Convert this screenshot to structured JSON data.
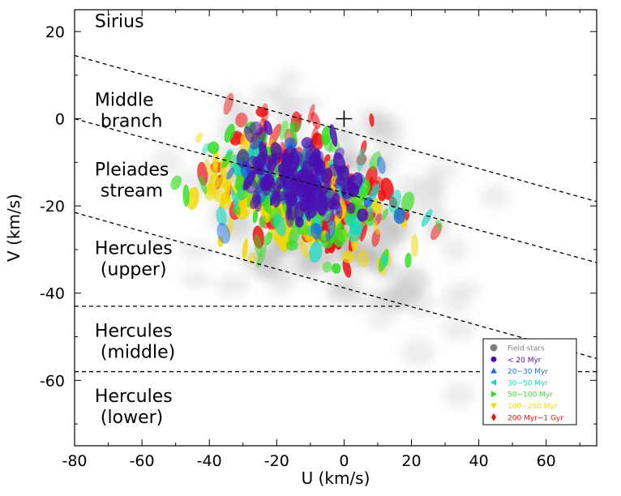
{
  "chart_data": {
    "type": "scatter",
    "xlabel": "U (km/s)",
    "ylabel": "V (km/s)",
    "xlim": [
      -80,
      75
    ],
    "ylim": [
      -75,
      25
    ],
    "x_ticks": [
      -80,
      -60,
      -40,
      -20,
      0,
      20,
      40,
      60
    ],
    "y_ticks": [
      -60,
      -40,
      -20,
      0,
      20
    ],
    "x_tick_labels": [
      "-80",
      "-60",
      "-40",
      "-20",
      "0",
      "20",
      "40",
      "60"
    ],
    "y_tick_labels": [
      "-60",
      "-40",
      "-20",
      "0",
      "20"
    ],
    "sun_marker": {
      "u": 0,
      "v": 0
    },
    "region_labels": [
      {
        "lines": [
          "Sirius"
        ],
        "u": -74,
        "v": 21
      },
      {
        "lines": [
          "Middle",
          " branch"
        ],
        "u": -74,
        "v": 3
      },
      {
        "lines": [
          "Pleiades",
          " stream"
        ],
        "u": -74,
        "v": -13
      },
      {
        "lines": [
          "Hercules",
          " (upper)"
        ],
        "u": -74,
        "v": -31
      },
      {
        "lines": [
          "Hercules",
          " (middle)"
        ],
        "u": -74,
        "v": -50
      },
      {
        "lines": [
          "Hercules",
          " (lower)"
        ],
        "u": -74,
        "v": -65
      }
    ],
    "boundary_lines": [
      {
        "u": [
          -80,
          75
        ],
        "v": [
          14.5,
          -19
        ]
      },
      {
        "u": [
          -80,
          75
        ],
        "v": [
          0,
          -33
        ]
      },
      {
        "u": [
          -80,
          75
        ],
        "v": [
          -21.5,
          -55
        ]
      },
      {
        "u": [
          -80,
          17
        ],
        "v": [
          -43,
          -43
        ]
      },
      {
        "u": [
          -80,
          75
        ],
        "v": [
          -58,
          -58
        ]
      }
    ],
    "legend": {
      "position": "lower-right",
      "entries": [
        {
          "label": "Field stars",
          "marker": "circle",
          "color": "#7f7f7f"
        },
        {
          "label": "< 20 Myr",
          "marker": "hexagon",
          "color": "#4b0fb0"
        },
        {
          "label": "20−30 Myr",
          "marker": "triangle-up",
          "color": "#1f6fe0"
        },
        {
          "label": "30−50 Myr",
          "marker": "triangle-left",
          "color": "#17d9c0"
        },
        {
          "label": "50−100 Myr",
          "marker": "triangle-right",
          "color": "#33dd22"
        },
        {
          "label": "100−200 Myr",
          "marker": "triangle-down",
          "color": "#f0d800"
        },
        {
          "label": "200 Myr−1 Gyr",
          "marker": "diamond",
          "color": "#ee1111"
        }
      ]
    },
    "series": [
      {
        "name": "Field stars",
        "color": "#9e9e9e",
        "center": [
          -5,
          -22
        ],
        "spread": [
          38,
          24
        ],
        "count": 160
      },
      {
        "name": "200 Myr−1 Gyr",
        "color": "#ee1111",
        "center": [
          -10,
          -15
        ],
        "spread": [
          22,
          12
        ],
        "count": 170
      },
      {
        "name": "100−200 Myr",
        "color": "#f0d800",
        "center": [
          -15,
          -20
        ],
        "spread": [
          24,
          10
        ],
        "count": 150
      },
      {
        "name": "50−100 Myr",
        "color": "#33dd22",
        "center": [
          -12,
          -17
        ],
        "spread": [
          26,
          11
        ],
        "count": 110
      },
      {
        "name": "30−50 Myr",
        "color": "#17d9c0",
        "center": [
          -10,
          -17
        ],
        "spread": [
          24,
          11
        ],
        "count": 50
      },
      {
        "name": "20−30 Myr",
        "color": "#1f6fe0",
        "center": [
          -12,
          -16
        ],
        "spread": [
          18,
          9
        ],
        "count": 50
      },
      {
        "name": "< 20 Myr",
        "color": "#4b0fb0",
        "center": [
          -14,
          -14
        ],
        "spread": [
          14,
          8
        ],
        "count": 120
      }
    ]
  }
}
